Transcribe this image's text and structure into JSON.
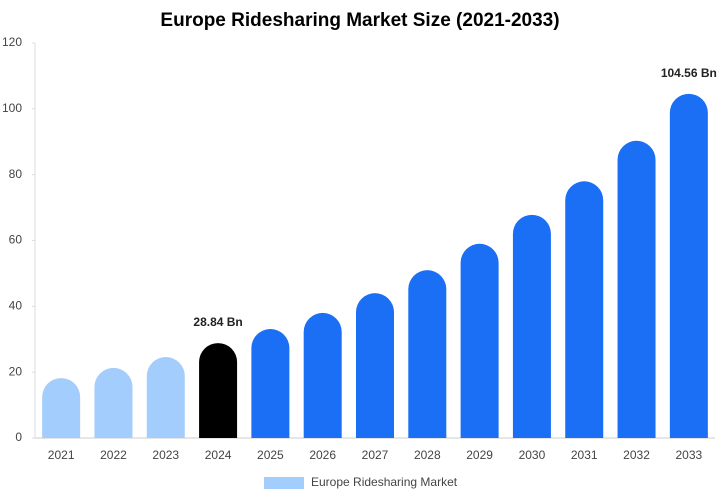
{
  "chart_data": {
    "type": "bar",
    "title": "Europe Ridesharing Market Size (2021-2033)",
    "categories": [
      "2021",
      "2022",
      "2023",
      "2024",
      "2025",
      "2026",
      "2027",
      "2028",
      "2029",
      "2030",
      "2031",
      "2032",
      "2033"
    ],
    "series": [
      {
        "name": "Europe Ridesharing Market",
        "color": "#a3cdfc",
        "colors": [
          "#a3cdfc",
          "#a3cdfc",
          "#a3cdfc",
          "#000000",
          "#1a6ff5",
          "#1a6ff5",
          "#1a6ff5",
          "#1a6ff5",
          "#1a6ff5",
          "#1a6ff5",
          "#1a6ff5",
          "#1a6ff5",
          "#1a6ff5"
        ],
        "values": [
          18.2,
          21.3,
          24.6,
          28.84,
          33.1,
          38,
          44,
          51,
          59,
          67.8,
          78,
          90.3,
          104.56
        ],
        "value_labels": [
          null,
          null,
          null,
          "28.84 Bn",
          null,
          null,
          null,
          null,
          null,
          null,
          null,
          null,
          "104.56 Bn"
        ]
      }
    ],
    "ylim": [
      0,
      120
    ],
    "yticks": [
      0,
      20,
      40,
      60,
      80,
      100,
      120
    ]
  }
}
